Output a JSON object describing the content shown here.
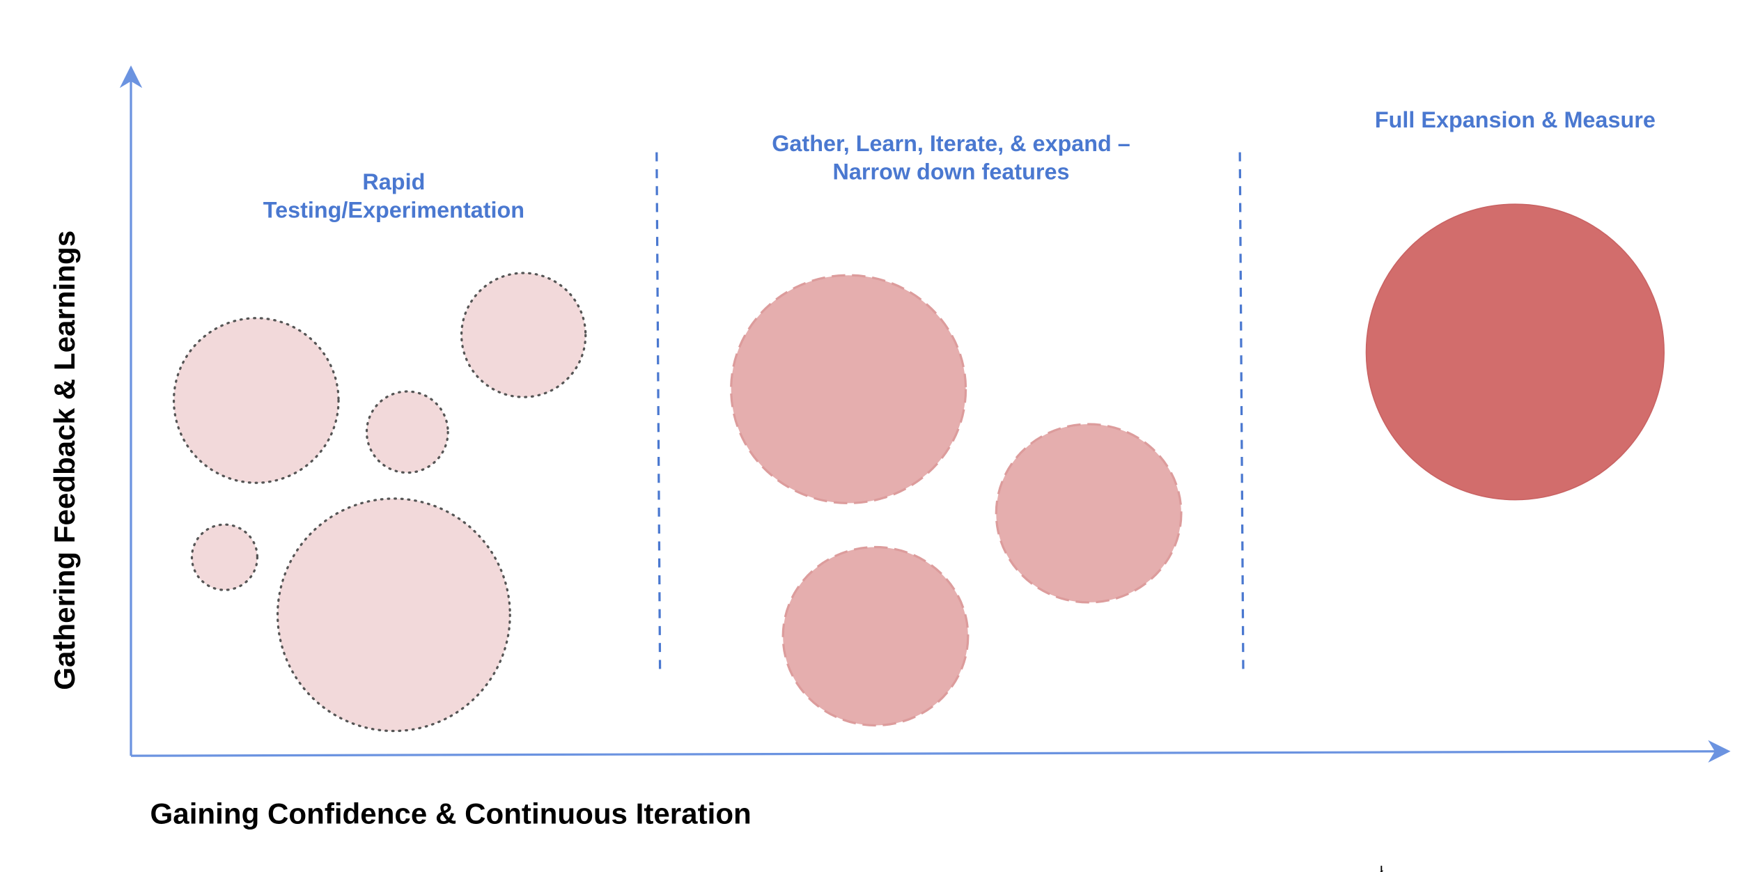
{
  "axes": {
    "y_label": "Gathering Feedback & Learnings",
    "x_label": "Gaining Confidence & Continuous Iteration"
  },
  "sections": [
    {
      "title_lines": [
        "Rapid",
        "Testing/Experimentation"
      ]
    },
    {
      "title_lines": [
        "Gather, Learn, Iterate, & expand –",
        "Narrow down features"
      ]
    },
    {
      "title_lines": [
        "Full Expansion & Measure"
      ]
    }
  ],
  "footnote": "ł."
}
